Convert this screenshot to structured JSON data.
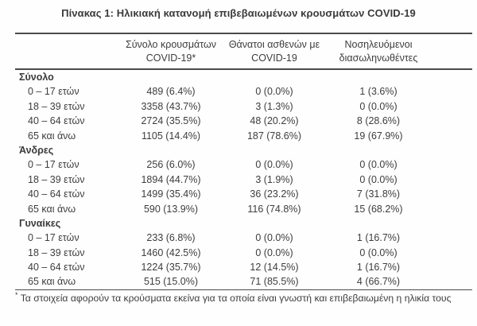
{
  "title": "Πίνακας 1: Ηλικιακή κατανομή επιβεβαιωμένων κρουσμάτων COVID-19",
  "table": {
    "columns": [
      {
        "name": "cases",
        "lines": [
          "Σύνολο κρουσμάτων",
          "COVID-19*"
        ]
      },
      {
        "name": "deaths",
        "lines": [
          "Θάνατοι ασθενών με",
          "COVID-19"
        ]
      },
      {
        "name": "intubated",
        "lines": [
          "Νοσηλευόμενοι",
          "διασωληνωθέντες"
        ]
      }
    ],
    "sections": [
      {
        "label": "Σύνολο",
        "rows": [
          {
            "age": "0 – 17 ετών",
            "cases": "489 (6.4%)",
            "deaths": "0 (0.0%)",
            "intubated": "1 (3.6%)"
          },
          {
            "age": "18 – 39 ετών",
            "cases": "3358 (43.7%)",
            "deaths": "3 (1.3%)",
            "intubated": "0 (0.0%)"
          },
          {
            "age": "40 – 64 ετών",
            "cases": "2724 (35.5%)",
            "deaths": "48 (20.2%)",
            "intubated": "8 (28.6%)"
          },
          {
            "age": "65 και άνω",
            "cases": "1105 (14.4%)",
            "deaths": "187 (78.6%)",
            "intubated": "19 (67.9%)"
          }
        ]
      },
      {
        "label": "Άνδρες",
        "rows": [
          {
            "age": "0 – 17 ετών",
            "cases": "256 (6.0%)",
            "deaths": "0 (0.0%)",
            "intubated": "0 (0.0%)"
          },
          {
            "age": "18 – 39 ετών",
            "cases": "1894 (44.7%)",
            "deaths": "3 (1.9%)",
            "intubated": "0 (0.0%)"
          },
          {
            "age": "40 – 64 ετών",
            "cases": "1499 (35.4%)",
            "deaths": "36 (23.2%)",
            "intubated": "7 (31.8%)"
          },
          {
            "age": "65 και άνω",
            "cases": "590 (13.9%)",
            "deaths": "116 (74.8%)",
            "intubated": "15 (68.2%)"
          }
        ]
      },
      {
        "label": "Γυναίκες",
        "rows": [
          {
            "age": "0 – 17 ετών",
            "cases": "233 (6.8%)",
            "deaths": "0 (0.0%)",
            "intubated": "1 (16.7%)"
          },
          {
            "age": "18 – 39 ετών",
            "cases": "1460 (42.5%)",
            "deaths": "0 (0.0%)",
            "intubated": "0 (0.0%)"
          },
          {
            "age": "40 – 64 ετών",
            "cases": "1224 (35.7%)",
            "deaths": "12 (14.5%)",
            "intubated": "1 (16.7%)"
          },
          {
            "age": "65 και άνω",
            "cases": "515 (15.0%)",
            "deaths": "71 (85.5%)",
            "intubated": "4 (66.7%)"
          }
        ]
      }
    ]
  },
  "footnote": {
    "marker": "*",
    "text": "Τα στοιχεία αφορούν τα κρούσματα εκείνα για τα οποία είναι γνωστή και επιβεβαιωμένη η ηλικία τους"
  }
}
